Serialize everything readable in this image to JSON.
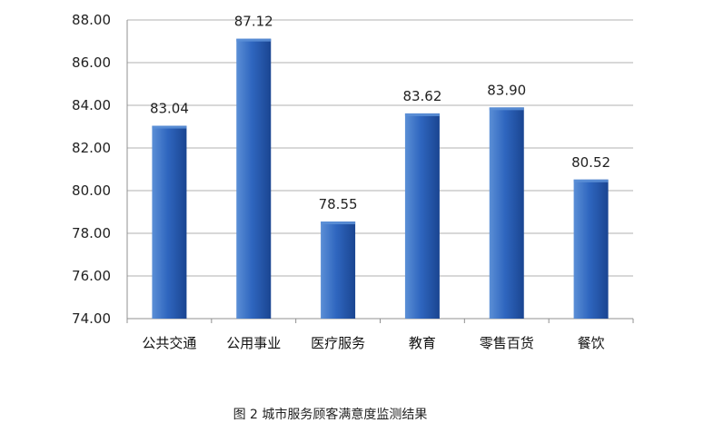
{
  "chart_data": {
    "type": "bar",
    "categories": [
      "公共交通",
      "公用事业",
      "医疗服务",
      "教育",
      "零售百货",
      "餐饮"
    ],
    "values": [
      83.04,
      87.12,
      78.55,
      83.62,
      83.9,
      80.52
    ],
    "value_labels": [
      "83.04",
      "87.12",
      "78.55",
      "83.62",
      "83.90",
      "80.52"
    ],
    "ylim": [
      74,
      88
    ],
    "yticks": [
      "74.00",
      "76.00",
      "78.00",
      "80.00",
      "82.00",
      "84.00",
      "86.00",
      "88.00"
    ],
    "title": "",
    "xlabel": "",
    "ylabel": "",
    "grid": true,
    "legend": "none",
    "colors": {
      "bar_light": "#5b8fd6",
      "bar_mid": "#2f66bf",
      "bar_dark": "#1a4591",
      "grid": "#b0b0b0",
      "axis": "#909090"
    }
  },
  "caption": "图 2  城市服务顾客满意度监测结果"
}
